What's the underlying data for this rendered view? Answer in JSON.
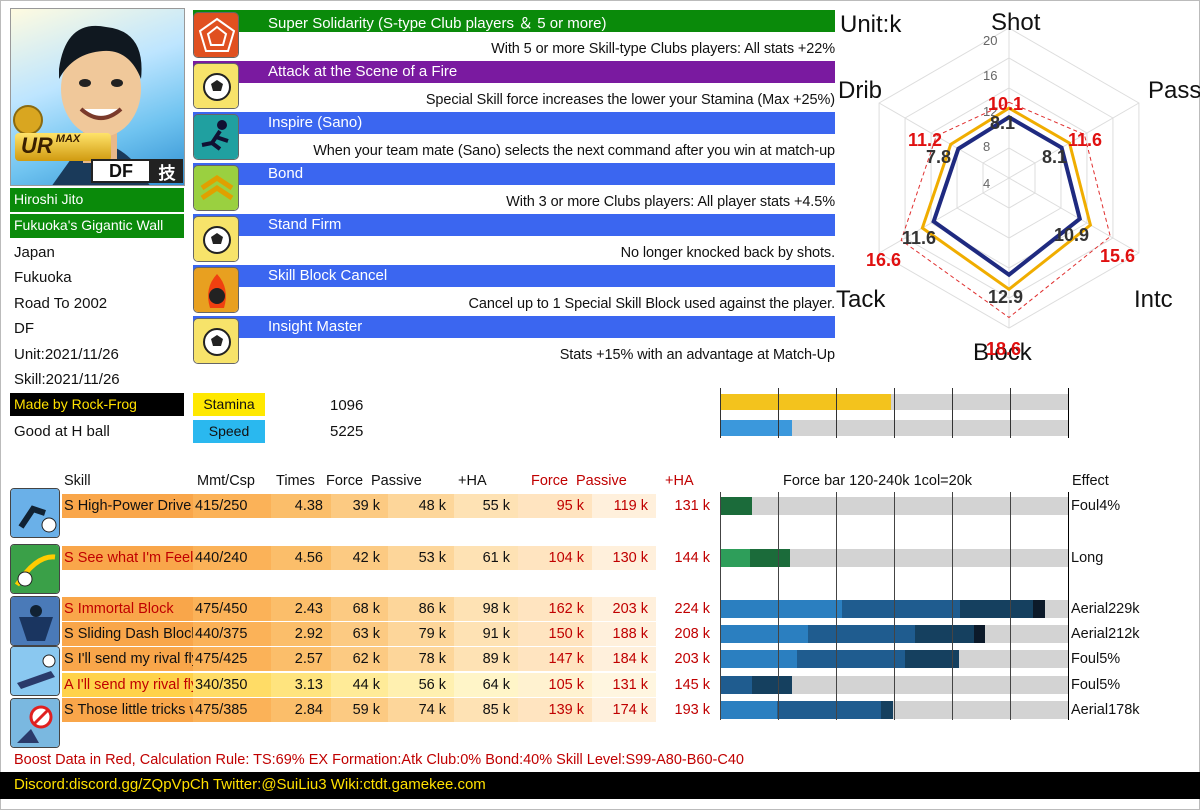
{
  "player": {
    "rarity": "UR",
    "rarity_tag": "MAX",
    "position_badge": "DF",
    "type_badge": "技",
    "name": "Hiroshi Jito",
    "nickname": "Fukuoka's Gigantic Wall",
    "country": "Japan",
    "team": "Fukuoka",
    "series": "Road To 2002",
    "position": "DF",
    "unit_date": "Unit:2021/11/26",
    "skill_date": "Skill:2021/11/26",
    "maker": "Made by Rock-Frog",
    "good_at": "Good at H ball"
  },
  "passives": [
    {
      "title": "Super Solidarity (S-type Club players ＆ 5 or more)",
      "desc": "With 5 or more Skill-type Clubs players: All stats +22%",
      "color": "#0a8a0a",
      "icon": "solidarity-icon"
    },
    {
      "title": "Attack at the Scene of a Fire",
      "desc": "Special Skill force increases the lower your Stamina (Max +25%)",
      "color": "#7a1aa0",
      "icon": "ball-icon"
    },
    {
      "title": "Inspire (Sano)",
      "desc": "When your team mate (Sano) selects the next command after you win at match-up",
      "color": "#3b66f0",
      "icon": "runner-icon"
    },
    {
      "title": "Bond",
      "desc": "With 3 or more Clubs players: All player stats +4.5%",
      "color": "#3b66f0",
      "icon": "chevron-up-icon"
    },
    {
      "title": "Stand Firm",
      "desc": "No longer knocked back by shots.",
      "color": "#3b66f0",
      "icon": "ball-icon"
    },
    {
      "title": "Skill Block Cancel",
      "desc": "Cancel up to 1 Special Skill Block used against the player.",
      "color": "#3b66f0",
      "icon": "block-cancel-icon"
    },
    {
      "title": "Insight Master",
      "desc": "Stats +15% with an advantage at Match-Up",
      "color": "#3b66f0",
      "icon": "ball-icon"
    }
  ],
  "stats_bars": [
    {
      "label": "Stamina",
      "value": "1096",
      "color": "#ffe800",
      "bar_color": "#f3c31d",
      "fraction": 0.49
    },
    {
      "label": "Speed",
      "value": "5225",
      "color": "#2ab8ef",
      "bar_color": "#3b98dc",
      "fraction": 0.204
    }
  ],
  "chart_data": {
    "type": "radar",
    "title": "Unit:k",
    "axes": [
      "Shot",
      "Pass",
      "Intc",
      "Block",
      "Tack",
      "Drib"
    ],
    "rmax": 20,
    "ticks": [
      "4",
      "8",
      "12",
      "16",
      "20"
    ],
    "series": [
      {
        "values": [
          8.1,
          8.1,
          10.9,
          12.9,
          11.6,
          7.8
        ],
        "color": "#1f2a80"
      },
      {
        "values": [
          8.1,
          8.1,
          10.9,
          12.9,
          11.6,
          7.8
        ],
        "color": "#f0ad00"
      },
      {
        "values": [
          10.1,
          11.6,
          15.6,
          18.6,
          16.6,
          11.2
        ],
        "color": "#e03030"
      }
    ],
    "labels_base": [
      "8.1",
      "8.1",
      "10.9",
      "12.9",
      "11.6",
      "7.8"
    ],
    "labels_boost": [
      "10.1",
      "11.6",
      "15.6",
      "18.6",
      "16.6",
      "11.2"
    ]
  },
  "skill_headers": {
    "skill": "Skill",
    "cost": "Mmt/Csp",
    "times": "Times",
    "force": "Force",
    "passive": "Passive",
    "ha": "+HA",
    "b_force": "Force",
    "b_passive": "Passive",
    "b_ha": "+HA",
    "forcebar": "Force bar 120-240k 1col=20k",
    "effect": "Effect"
  },
  "skills": [
    {
      "name": "S High-Power Drive Shot",
      "cost": "415/250",
      "times": "4.38",
      "force": "39  k",
      "passive": "48  k",
      "ha": "55  k",
      "b_force": "95  k",
      "b_passive": "119  k",
      "b_ha": "131  k",
      "effect": "Foul4%",
      "red_name": false,
      "icon": "shot-icon",
      "bars": [
        {
          "w": 0.09,
          "c": "#1b6b3a"
        }
      ]
    },
    {
      "name": "S See what I'm Feeling!",
      "cost": "440/240",
      "times": "4.56",
      "force": "42  k",
      "passive": "53  k",
      "ha": "61  k",
      "b_force": "104  k",
      "b_passive": "130  k",
      "b_ha": "144  k",
      "effect": "Long",
      "red_name": true,
      "icon": "pass-icon",
      "bars": [
        {
          "w": 0.085,
          "c": "#2e9e5a"
        },
        {
          "w": 0.115,
          "c": "#1b6b3a"
        }
      ]
    },
    {
      "name": "S Immortal Block",
      "cost": "475/450",
      "times": "2.43",
      "force": "68  k",
      "passive": "86  k",
      "ha": "98  k",
      "b_force": "162  k",
      "b_passive": "203  k",
      "b_ha": "224  k",
      "effect": "Aerial229k",
      "red_name": true,
      "icon": "block-icon",
      "bars": [
        {
          "w": 0.35,
          "c": "#2b7fc0"
        },
        {
          "w": 0.34,
          "c": "#1f5c8f"
        },
        {
          "w": 0.21,
          "c": "#15405f"
        },
        {
          "w": 0.035,
          "c": "#0c1a2a"
        }
      ]
    },
    {
      "name": "S Sliding Dash Block",
      "cost": "440/375",
      "times": "2.92",
      "force": "63  k",
      "passive": "79  k",
      "ha": "91  k",
      "b_force": "150  k",
      "b_passive": "188  k",
      "b_ha": "208  k",
      "effect": "Aerial212k",
      "red_name": false,
      "icon": "block-icon",
      "bars": [
        {
          "w": 0.25,
          "c": "#2b7fc0"
        },
        {
          "w": 0.31,
          "c": "#1f5c8f"
        },
        {
          "w": 0.17,
          "c": "#15405f"
        },
        {
          "w": 0.03,
          "c": "#0c1a2a"
        }
      ]
    },
    {
      "name": "S I'll send my rival flying!",
      "cost": "475/425",
      "times": "2.57",
      "force": "62  k",
      "passive": "78  k",
      "ha": "89  k",
      "b_force": "147  k",
      "b_passive": "184  k",
      "b_ha": "203  k",
      "effect": "Foul5%",
      "red_name": false,
      "icon": "tackle-icon",
      "bars": [
        {
          "w": 0.22,
          "c": "#2b7fc0"
        },
        {
          "w": 0.31,
          "c": "#1f5c8f"
        },
        {
          "w": 0.155,
          "c": "#15405f"
        }
      ]
    },
    {
      "name": "A I'll send my rival flying!",
      "cost": "340/350",
      "times": "3.13",
      "force": "44  k",
      "passive": "56  k",
      "ha": "64  k",
      "b_force": "105  k",
      "b_passive": "131  k",
      "b_ha": "145  k",
      "effect": "Foul5%",
      "red_name": true,
      "icon": "tackle-icon",
      "bars": [
        {
          "w": 0.09,
          "c": "#1f5c8f"
        },
        {
          "w": 0.115,
          "c": "#15405f"
        }
      ]
    },
    {
      "name": "S Those little tricks won't work!",
      "cost": "475/385",
      "times": "2.84",
      "force": "59  k",
      "passive": "74  k",
      "ha": "85  k",
      "b_force": "139  k",
      "b_passive": "174  k",
      "b_ha": "193  k",
      "effect": "Aerial178k",
      "red_name": false,
      "icon": "no-entry-icon",
      "bars": [
        {
          "w": 0.16,
          "c": "#2b7fc0"
        },
        {
          "w": 0.3,
          "c": "#1f5c8f"
        },
        {
          "w": 0.035,
          "c": "#15405f"
        }
      ]
    }
  ],
  "calc_rule": "Boost Data in Red, Calculation Rule: TS:69% EX Formation:Atk Club:0% Bond:40% Skill Level:S99-A80-B60-C40",
  "footer": "Discord:discord.gg/ZQpVpCh  Twitter:@SuiLiu3  Wiki:ctdt.gamekee.com"
}
